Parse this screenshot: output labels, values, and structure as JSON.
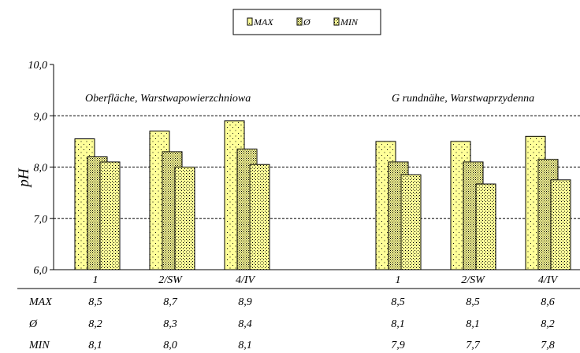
{
  "chart_data": {
    "type": "bar",
    "ylabel": "pH",
    "ylim": [
      6.0,
      10.0
    ],
    "yticks": [
      "6,0",
      "7,0",
      "8,0",
      "9,0",
      "10,0"
    ],
    "grid": "dashed horizontal lines at 7,0 8,0 9,0",
    "legend_position": "top-center",
    "groups": [
      {
        "title": "Oberfläche, Warstwapowierzchniowa",
        "categories": [
          "1",
          "2/SW",
          "4/IV"
        ]
      },
      {
        "title": "G rundnähe, Warstwaprzydenna",
        "categories": [
          "1",
          "2/SW",
          "4/IV"
        ]
      }
    ],
    "series": [
      {
        "name": "MAX",
        "fill": "#ffff99",
        "pattern": "sparse-dots",
        "values": [
          8.55,
          8.7,
          8.9,
          8.5,
          8.5,
          8.6
        ],
        "labels": [
          "8,5",
          "8,7",
          "8,9",
          "8,5",
          "8,5",
          "8,6"
        ]
      },
      {
        "name": "Ø",
        "fill": "#ffff99",
        "pattern": "dense-dots",
        "values": [
          8.2,
          8.3,
          8.35,
          8.1,
          8.1,
          8.15
        ],
        "labels": [
          "8,2",
          "8,3",
          "8,4",
          "8,1",
          "8,1",
          "8,2"
        ]
      },
      {
        "name": "MIN",
        "fill": "#ffff99",
        "pattern": "medium-dots",
        "values": [
          8.1,
          8.0,
          8.05,
          7.85,
          7.67,
          7.75
        ],
        "labels": [
          "8,1",
          "8,0",
          "8,1",
          "7,9",
          "7,7",
          "7,8"
        ]
      }
    ],
    "table_row_labels": [
      "MAX",
      "Ø",
      "MIN"
    ]
  }
}
